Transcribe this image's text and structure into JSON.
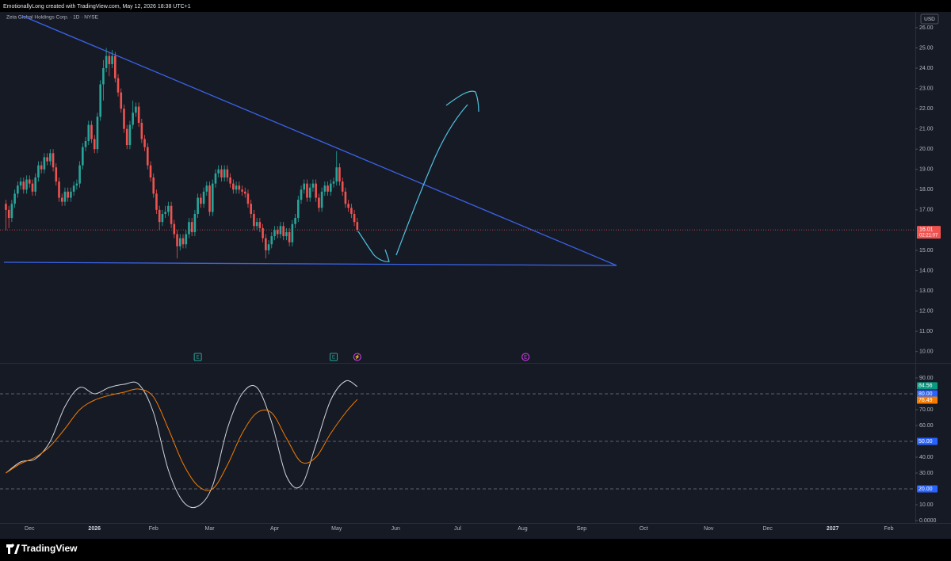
{
  "header": {
    "credit": "EmotionallyLong created with TradingView.com, May 12, 2026 18:38 UTC+1"
  },
  "symbol": "Zeta Global Holdings Corp. · 1D · NYSE",
  "currency": "USD",
  "brand": "TradingView",
  "chart_data": [
    {
      "type": "candlestick",
      "up_color": "#26a69a",
      "down_color": "#ef5350",
      "open": [
        17.3,
        17.0,
        16.6,
        17.3,
        17.8,
        18.2,
        18.4,
        18.0,
        18.5,
        18.3,
        17.9,
        18.6,
        19.2,
        19.0,
        19.6,
        19.4,
        19.8,
        19.1,
        18.4,
        17.6,
        17.4,
        17.9,
        17.6,
        17.9,
        18.2,
        18.3,
        19.2,
        20.1,
        20.4,
        21.2,
        20.5,
        20.0,
        21.6,
        23.2,
        24.0,
        24.6,
        24.2,
        24.6,
        23.5,
        22.8,
        22.0,
        21.0,
        20.2,
        21.2,
        21.8,
        22.1,
        21.3,
        20.5,
        20.1,
        19.2,
        18.6,
        17.8,
        17.0,
        16.4,
        16.8,
        16.9,
        17.2,
        16.3,
        15.8,
        15.2,
        15.6,
        15.3,
        15.8,
        16.4,
        15.9,
        16.8,
        17.6,
        17.3,
        17.9,
        18.2,
        16.9,
        18.3,
        18.8,
        19.0,
        18.6,
        19.0,
        18.6,
        18.3,
        18.0,
        18.2,
        18.0,
        17.9,
        17.8,
        17.3,
        16.8,
        16.2,
        16.4,
        16.1,
        15.6,
        15.0,
        15.3,
        15.7,
        16.0,
        15.8,
        16.2,
        15.7,
        15.9,
        15.4,
        16.3,
        16.6,
        17.5,
        18.0,
        18.3,
        17.6,
        18.1,
        18.3,
        17.6,
        17.1,
        17.9,
        18.2,
        17.9,
        18.3,
        18.4,
        19.1,
        18.4,
        17.9,
        17.3,
        17.1,
        16.8,
        16.4
      ],
      "high": [
        17.5,
        17.2,
        17.5,
        18.0,
        18.4,
        18.6,
        18.6,
        18.7,
        18.7,
        18.5,
        18.8,
        19.4,
        19.4,
        19.8,
        19.8,
        20.0,
        20.0,
        19.3,
        18.6,
        17.8,
        18.1,
        18.1,
        18.1,
        18.4,
        18.5,
        19.4,
        20.3,
        20.6,
        21.4,
        21.4,
        20.7,
        21.8,
        23.4,
        24.4,
        25.0,
        24.8,
        24.9,
        24.8,
        23.7,
        23.0,
        22.2,
        21.2,
        21.4,
        22.4,
        22.3,
        22.3,
        21.5,
        20.7,
        20.3,
        19.4,
        18.8,
        18.0,
        17.2,
        17.0,
        17.2,
        17.4,
        17.4,
        16.5,
        16.0,
        15.8,
        15.8,
        16.0,
        16.6,
        16.6,
        17.0,
        17.8,
        17.8,
        18.1,
        18.4,
        18.4,
        18.5,
        19.0,
        19.2,
        19.2,
        19.2,
        19.2,
        18.8,
        18.5,
        18.4,
        18.4,
        18.2,
        18.1,
        18.0,
        17.5,
        17.0,
        16.6,
        16.6,
        16.3,
        15.8,
        15.5,
        15.9,
        16.2,
        16.2,
        16.4,
        16.4,
        16.1,
        16.1,
        16.5,
        16.8,
        17.7,
        18.2,
        18.5,
        18.5,
        18.3,
        18.5,
        18.5,
        17.8,
        18.1,
        18.4,
        18.4,
        18.5,
        18.6,
        19.9,
        19.3,
        18.6,
        18.1,
        17.5,
        17.3,
        17.0,
        16.6
      ],
      "low": [
        16.0,
        16.1,
        16.4,
        17.1,
        17.6,
        18.0,
        17.8,
        17.8,
        18.1,
        17.7,
        17.7,
        18.4,
        18.8,
        18.8,
        19.2,
        19.2,
        18.9,
        18.2,
        17.4,
        17.2,
        17.2,
        17.4,
        17.4,
        17.7,
        18.0,
        18.1,
        19.0,
        19.9,
        20.2,
        20.3,
        19.8,
        19.8,
        21.4,
        22.4,
        23.8,
        23.6,
        24.0,
        23.3,
        22.6,
        21.8,
        20.8,
        20.0,
        20.0,
        21.0,
        21.6,
        21.1,
        20.3,
        19.9,
        19.0,
        18.4,
        17.6,
        16.8,
        16.0,
        16.2,
        16.6,
        16.7,
        16.1,
        15.6,
        14.6,
        15.0,
        15.1,
        15.1,
        15.6,
        15.7,
        15.7,
        16.6,
        17.1,
        17.1,
        17.7,
        16.7,
        16.7,
        18.1,
        18.6,
        18.4,
        18.4,
        18.4,
        18.1,
        17.8,
        17.8,
        17.8,
        17.7,
        17.6,
        17.1,
        16.6,
        16.0,
        16.0,
        15.9,
        15.4,
        14.6,
        14.8,
        15.1,
        15.5,
        15.6,
        15.6,
        15.5,
        15.5,
        15.2,
        15.2,
        16.1,
        16.4,
        17.3,
        17.8,
        17.4,
        17.4,
        17.9,
        17.4,
        16.9,
        16.9,
        17.7,
        17.7,
        17.7,
        18.1,
        18.2,
        18.2,
        17.7,
        17.1,
        16.9,
        16.6,
        16.2,
        15.9
      ],
      "close": [
        17.0,
        16.6,
        17.3,
        17.8,
        18.2,
        18.4,
        18.0,
        18.5,
        18.3,
        17.9,
        18.6,
        19.2,
        19.0,
        19.6,
        19.4,
        19.8,
        19.1,
        18.4,
        17.6,
        17.4,
        17.9,
        17.6,
        17.9,
        18.2,
        18.3,
        19.2,
        20.1,
        20.4,
        21.2,
        20.5,
        20.0,
        21.6,
        23.2,
        24.0,
        24.6,
        24.2,
        24.6,
        23.5,
        22.8,
        22.0,
        21.0,
        20.2,
        21.2,
        21.8,
        22.1,
        21.3,
        20.5,
        20.1,
        19.2,
        18.6,
        17.8,
        17.0,
        16.4,
        16.8,
        16.9,
        17.2,
        16.3,
        15.8,
        15.2,
        15.6,
        15.3,
        15.8,
        16.4,
        15.9,
        16.8,
        17.6,
        17.3,
        17.9,
        18.2,
        16.9,
        18.3,
        18.8,
        19.0,
        18.6,
        19.0,
        18.6,
        18.3,
        18.0,
        18.2,
        18.0,
        17.9,
        17.8,
        17.3,
        16.8,
        16.2,
        16.4,
        16.1,
        15.6,
        15.0,
        15.3,
        15.7,
        16.0,
        15.8,
        16.2,
        15.7,
        15.9,
        15.4,
        16.3,
        16.6,
        17.5,
        18.0,
        18.3,
        17.6,
        18.1,
        18.3,
        17.6,
        17.1,
        17.9,
        18.2,
        17.9,
        18.3,
        18.4,
        19.1,
        18.4,
        17.9,
        17.3,
        17.1,
        16.8,
        16.4,
        16.01
      ],
      "countdown": "02:21:07",
      "xlim": [
        -2,
        308
      ],
      "ylim": [
        9.44,
        26.78
      ],
      "yticks": [
        {
          "value": 26,
          "label": "26.00"
        },
        {
          "value": 25,
          "label": "25.00"
        },
        {
          "value": 24,
          "label": "24.00"
        },
        {
          "value": 23,
          "label": "23.00"
        },
        {
          "value": 22,
          "label": "22.00"
        },
        {
          "value": 21,
          "label": "21.00"
        },
        {
          "value": 20,
          "label": "20.00"
        },
        {
          "value": 19,
          "label": "19.00"
        },
        {
          "value": 18,
          "label": "18.00"
        },
        {
          "value": 17,
          "label": "17.00"
        },
        {
          "value": 15,
          "label": "15.00"
        },
        {
          "value": 14,
          "label": "14.00"
        },
        {
          "value": 13,
          "label": "13.00"
        },
        {
          "value": 12,
          "label": "12.00"
        },
        {
          "value": 11,
          "label": "11.00"
        },
        {
          "value": 10,
          "label": "10.00"
        }
      ],
      "xticks": [
        {
          "value": 8,
          "label": "Dec"
        },
        {
          "value": 30,
          "label": "2026"
        },
        {
          "value": 50,
          "label": "Feb"
        },
        {
          "value": 69,
          "label": "Mar"
        },
        {
          "value": 91,
          "label": "Apr"
        },
        {
          "value": 112,
          "label": "May"
        },
        {
          "value": 132,
          "label": "Jun"
        },
        {
          "value": 153,
          "label": "Jul"
        },
        {
          "value": 175,
          "label": "Aug"
        },
        {
          "value": 195,
          "label": "Sep"
        },
        {
          "value": 216,
          "label": "Oct"
        },
        {
          "value": 238,
          "label": "Nov"
        },
        {
          "value": 258,
          "label": "Dec"
        },
        {
          "value": 280,
          "label": "2027"
        },
        {
          "value": 299,
          "label": "Feb"
        }
      ],
      "events": [
        {
          "x": 65,
          "label": "E",
          "color": "#26a69a"
        },
        {
          "x": 111,
          "label": "E",
          "color": "#26a69a"
        },
        {
          "x": 119,
          "label": "⚡",
          "color": "#e040fb"
        },
        {
          "x": 176,
          "label": "E",
          "color": "#e040fb"
        }
      ]
    },
    {
      "type": "line",
      "x": [
        0,
        5,
        10,
        15,
        20,
        25,
        30,
        35,
        40,
        45,
        50,
        55,
        60,
        65,
        70,
        75,
        80,
        85,
        90,
        95,
        100,
        105,
        110,
        115,
        119
      ],
      "series": [
        {
          "color": "#d1d4dc",
          "tag_color": "#089981",
          "values": [
            30,
            37,
            39,
            50,
            72,
            84,
            80,
            84,
            86,
            86,
            68,
            32,
            12,
            9,
            22,
            58,
            80,
            84,
            62,
            28,
            22,
            48,
            76,
            88,
            84.56
          ]
        },
        {
          "color": "#f57c00",
          "tag_color": "#f57c00",
          "values": [
            30,
            36,
            40,
            47,
            58,
            70,
            76,
            79,
            81,
            83,
            78,
            58,
            36,
            22,
            20,
            35,
            55,
            68,
            68,
            52,
            37,
            40,
            55,
            68,
            76.49
          ]
        }
      ],
      "levels": [
        {
          "value": 80,
          "label": "80.00"
        },
        {
          "value": 50,
          "label": "50.00"
        },
        {
          "value": 20,
          "label": "20.00"
        }
      ],
      "xlim": [
        -2,
        308
      ],
      "ylim": [
        -1.5,
        98.5
      ],
      "yticks": [
        {
          "value": 90,
          "label": "90.00"
        },
        {
          "value": 70,
          "label": "70.00"
        },
        {
          "value": 60,
          "label": "60.00"
        },
        {
          "value": 40,
          "label": "40.00"
        },
        {
          "value": 30,
          "label": "30.00"
        },
        {
          "value": 10,
          "label": "10.00"
        },
        {
          "value": 0,
          "label": "0.0000"
        }
      ]
    }
  ]
}
